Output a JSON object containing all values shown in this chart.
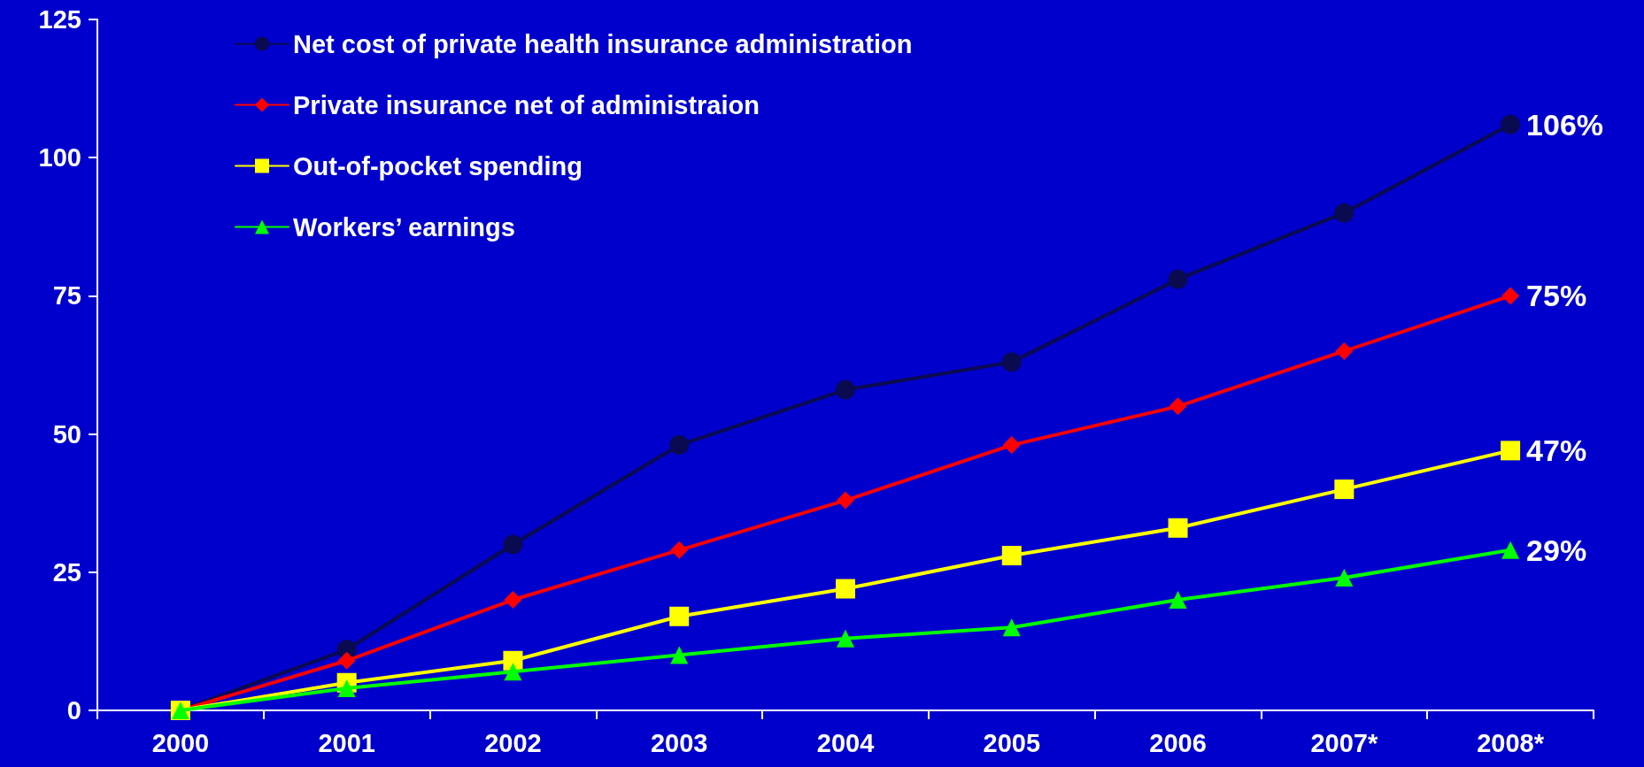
{
  "chart_data": {
    "type": "line",
    "categories": [
      "2000",
      "2001",
      "2002",
      "2003",
      "2004",
      "2005",
      "2006",
      "2007*",
      "2008*"
    ],
    "ylim": [
      0,
      125
    ],
    "yticks": [
      0,
      25,
      50,
      75,
      100,
      125
    ],
    "grid": false,
    "legend": "top left",
    "line_style": "solid",
    "series": [
      {
        "name": "Net cost of private health insurance administration",
        "color": "#0a0a50",
        "marker": "circle",
        "values": [
          0,
          11,
          30,
          48,
          58,
          63,
          78,
          90,
          106
        ]
      },
      {
        "name": "Private insurance net of administraion",
        "color": "#ff0000",
        "marker": "diamond",
        "values": [
          0,
          9,
          20,
          29,
          38,
          48,
          55,
          65,
          75
        ]
      },
      {
        "name": "Out-of-pocket spending",
        "color": "#ffff00",
        "marker": "square",
        "values": [
          0,
          5,
          9,
          17,
          22,
          28,
          33,
          40,
          47
        ]
      },
      {
        "name": "Workers’ earnings",
        "color": "#00ff00",
        "marker": "triangle",
        "values": [
          0,
          4,
          7,
          10,
          13,
          15,
          20,
          24,
          29
        ]
      }
    ],
    "annotations": [
      {
        "text": "106%",
        "x": "2008*",
        "y": 106
      },
      {
        "text": "75%",
        "x": "2008*",
        "y": 75
      },
      {
        "text": "47%",
        "x": "2008*",
        "y": 47
      },
      {
        "text": "29%",
        "x": "2008*",
        "y": 29
      }
    ]
  }
}
